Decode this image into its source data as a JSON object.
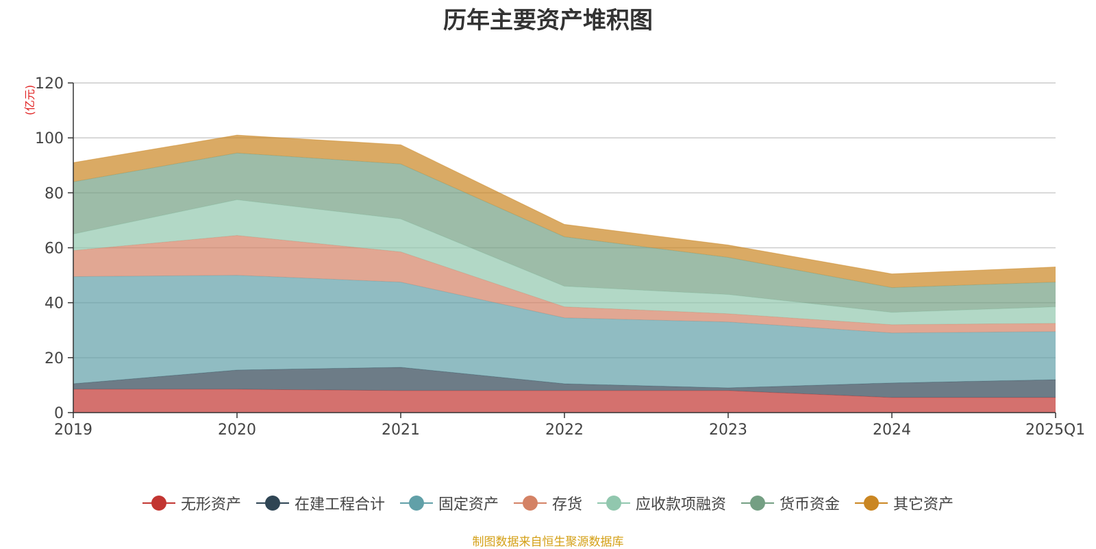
{
  "chart_data": {
    "type": "area",
    "stacked": true,
    "title": "历年主要资产堆积图",
    "unit_label": "(亿元)",
    "categories": [
      "2019",
      "2020",
      "2021",
      "2022",
      "2023",
      "2024",
      "2025Q1"
    ],
    "ylim": [
      0,
      120
    ],
    "yticks": [
      0,
      20,
      40,
      60,
      80,
      100,
      120
    ],
    "grid": true,
    "legend_position": "bottom",
    "series": [
      {
        "name": "无形资产",
        "color": "#c23531",
        "values": [
          8.5,
          8.5,
          8.0,
          8.0,
          8.0,
          5.5,
          5.5
        ]
      },
      {
        "name": "在建工程合计",
        "color": "#2f4554",
        "values": [
          2.0,
          7.0,
          8.5,
          2.5,
          1.0,
          5.3,
          6.5
        ]
      },
      {
        "name": "固定资产",
        "color": "#61a0a8",
        "values": [
          39.0,
          34.5,
          31.0,
          24.0,
          24.0,
          18.2,
          17.5
        ]
      },
      {
        "name": "存货",
        "color": "#d48265",
        "values": [
          9.5,
          14.5,
          11.0,
          4.0,
          3.0,
          3.0,
          3.0
        ]
      },
      {
        "name": "应收款项融资",
        "color": "#91c7ae",
        "values": [
          6.0,
          13.0,
          12.0,
          7.5,
          7.0,
          4.5,
          6.0
        ]
      },
      {
        "name": "货币资金",
        "color": "#749f83",
        "values": [
          19.0,
          17.0,
          20.0,
          18.0,
          13.5,
          9.0,
          9.0
        ]
      },
      {
        "name": "其它资产",
        "color": "#ca8622",
        "values": [
          7.0,
          6.5,
          7.0,
          4.5,
          4.5,
          5.0,
          5.5
        ]
      }
    ],
    "source_note": "制图数据来自恒生聚源数据库"
  }
}
